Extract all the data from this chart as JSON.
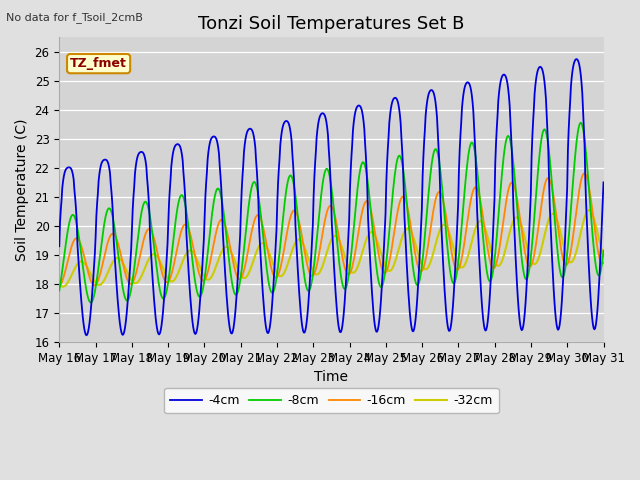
{
  "title": "Tonzi Soil Temperatures Set B",
  "xlabel": "Time",
  "ylabel": "Soil Temperature (C)",
  "note": "No data for f_Tsoil_2cmB",
  "legend_label": "TZ_fmet",
  "series_labels": [
    "-4cm",
    "-8cm",
    "-16cm",
    "-32cm"
  ],
  "series_colors": [
    "#0000dd",
    "#00cc00",
    "#ff8800",
    "#cccc00"
  ],
  "ylim": [
    16.0,
    26.5
  ],
  "yticks": [
    16.0,
    17.0,
    18.0,
    19.0,
    20.0,
    21.0,
    22.0,
    23.0,
    24.0,
    25.0,
    26.0
  ],
  "bg_color": "#e0e0e0",
  "plot_bg_color": "#d4d4d4",
  "grid_color": "#ffffff",
  "title_fontsize": 13,
  "axis_label_fontsize": 10,
  "tick_fontsize": 8.5,
  "note_fontsize": 8,
  "linewidth": 1.3
}
